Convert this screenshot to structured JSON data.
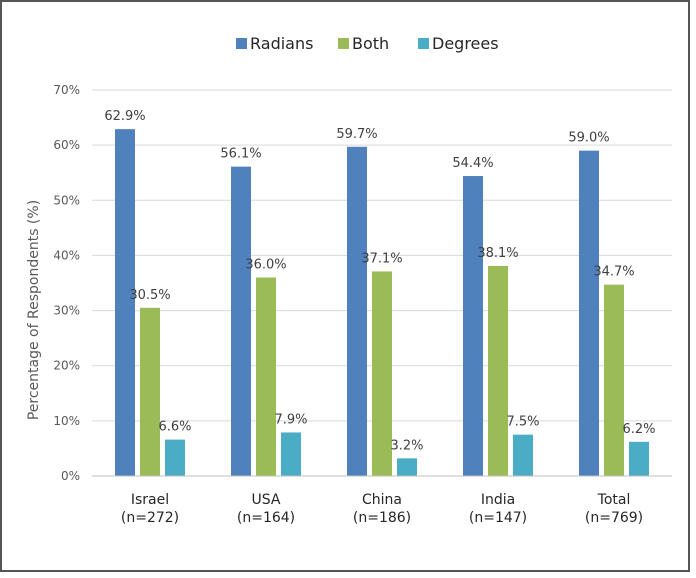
{
  "chart_data": {
    "type": "bar",
    "title": "",
    "ylabel": "Percentage of Respondents (%)",
    "xlabel": "",
    "ylim": [
      0,
      70
    ],
    "y_ticks": [
      "0%",
      "10%",
      "20%",
      "30%",
      "40%",
      "50%",
      "60%",
      "70%"
    ],
    "categories": [
      [
        "Israel",
        "(n=272)"
      ],
      [
        "USA",
        "(n=164)"
      ],
      [
        "China",
        "(n=186)"
      ],
      [
        "India",
        "(n=147)"
      ],
      [
        "Total",
        "(n=769)"
      ]
    ],
    "series": [
      {
        "name": "Radians",
        "color": "#4f81bd",
        "values": [
          62.9,
          56.1,
          59.7,
          54.4,
          59.0
        ],
        "labels": [
          "62.9%",
          "56.1%",
          "59.7%",
          "54.4%",
          "59.0%"
        ]
      },
      {
        "name": "Both",
        "color": "#9bbb59",
        "values": [
          30.5,
          36.0,
          37.1,
          38.1,
          34.7
        ],
        "labels": [
          "30.5%",
          "36.0%",
          "37.1%",
          "38.1%",
          "34.7%"
        ]
      },
      {
        "name": "Degrees",
        "color": "#4bacc6",
        "values": [
          6.6,
          7.9,
          3.2,
          7.5,
          6.2
        ],
        "labels": [
          "6.6%",
          "7.9%",
          "3.2%",
          "7.5%",
          "6.2%"
        ]
      }
    ],
    "legend_position": "top-center",
    "grid": true
  }
}
